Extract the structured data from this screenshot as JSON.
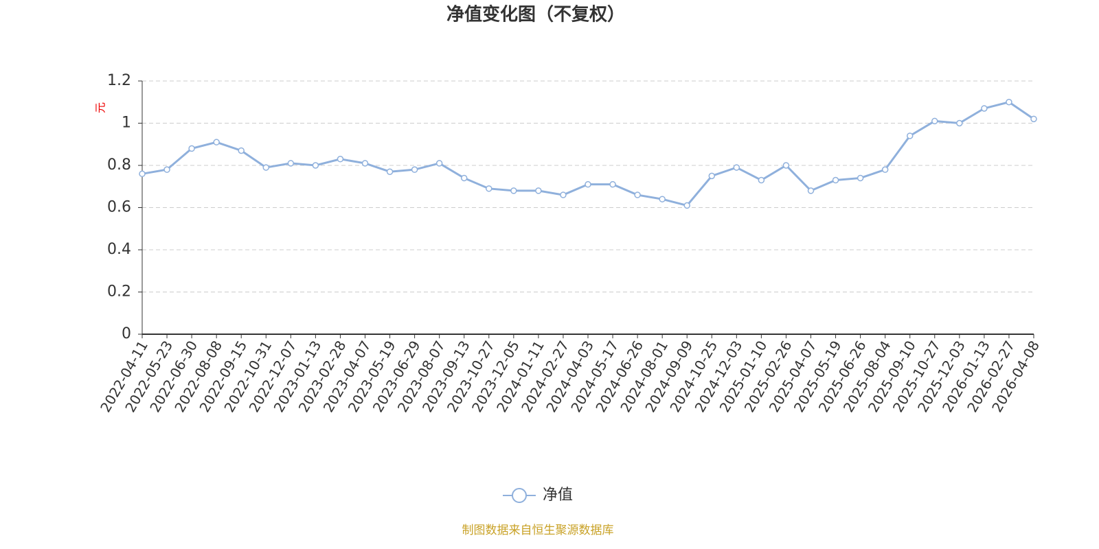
{
  "chart_data": {
    "type": "line",
    "title": "净值变化图（不复权）",
    "y_axis_label": "元",
    "x": [
      "2022-04-11",
      "2022-05-23",
      "2022-06-30",
      "2022-08-08",
      "2022-09-15",
      "2022-10-31",
      "2022-12-07",
      "2023-01-13",
      "2023-02-28",
      "2023-04-07",
      "2023-05-19",
      "2023-06-29",
      "2023-08-07",
      "2023-09-13",
      "2023-10-27",
      "2023-12-05",
      "2024-01-11",
      "2024-02-27",
      "2024-04-03",
      "2024-05-17",
      "2024-06-26",
      "2024-08-01",
      "2024-09-09",
      "2024-10-25",
      "2024-12-03",
      "2025-01-10",
      "2025-02-26",
      "2025-04-07",
      "2025-05-19",
      "2025-06-26",
      "2025-08-04",
      "2025-09-10",
      "2025-10-27",
      "2025-12-03",
      "2026-01-13",
      "2026-02-27",
      "2026-04-08"
    ],
    "series": [
      {
        "name": "净值",
        "color": "#8fb0dc",
        "values": [
          0.76,
          0.78,
          0.88,
          0.91,
          0.87,
          0.79,
          0.81,
          0.8,
          0.83,
          0.81,
          0.77,
          0.78,
          0.81,
          0.74,
          0.69,
          0.68,
          0.68,
          0.66,
          0.71,
          0.71,
          0.66,
          0.64,
          0.61,
          0.75,
          0.79,
          0.73,
          0.8,
          0.68,
          0.73,
          0.74,
          0.78,
          0.94,
          1.01,
          1.0,
          1.07,
          1.1,
          1.02
        ]
      }
    ],
    "ylim": [
      0,
      1.2
    ],
    "yticks": [
      0,
      0.2,
      0.4,
      0.6,
      0.8,
      1,
      1.2
    ],
    "grid": true,
    "source": "制图数据来自恒生聚源数据库"
  }
}
